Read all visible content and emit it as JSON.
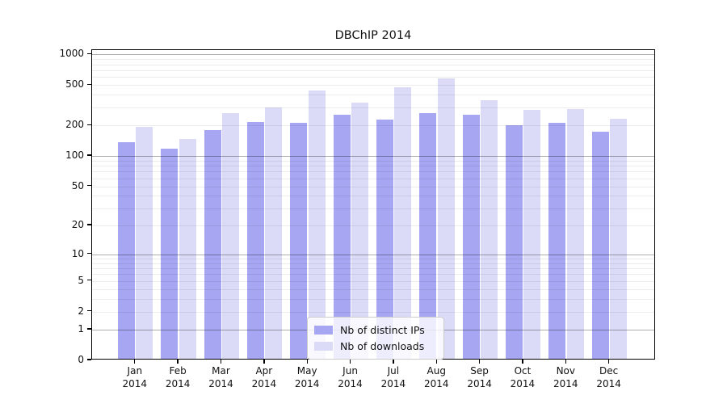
{
  "title": "DBChIP 2014",
  "chart_data": {
    "type": "bar",
    "title": "DBChIP 2014",
    "year": "2014",
    "months": [
      "Jan",
      "Feb",
      "Mar",
      "Apr",
      "May",
      "Jun",
      "Jul",
      "Aug",
      "Sep",
      "Oct",
      "Nov",
      "Dec"
    ],
    "categories": [
      "Jan 2014",
      "Feb 2014",
      "Mar 2014",
      "Apr 2014",
      "May 2014",
      "Jun 2014",
      "Jul 2014",
      "Aug 2014",
      "Sep 2014",
      "Oct 2014",
      "Nov 2014",
      "Dec 2014"
    ],
    "series": [
      {
        "name": "Nb of distinct IPs",
        "color": "#a6a6f2",
        "values": [
          140,
          121,
          182,
          221,
          216,
          258,
          234,
          272,
          261,
          206,
          217,
          177
        ]
      },
      {
        "name": "Nb of downloads",
        "color": "#dbdbf8",
        "values": [
          196,
          149,
          272,
          306,
          450,
          345,
          482,
          589,
          362,
          293,
          297,
          238
        ]
      }
    ],
    "y_axis": {
      "scale": "log10(value+1)",
      "tick_values": [
        1000,
        500,
        200,
        100,
        50,
        20,
        10,
        5,
        2,
        1,
        0
      ],
      "tick_labels": [
        "1000",
        "500",
        "200",
        "100",
        "50",
        "20",
        "10",
        "5",
        "2",
        "1",
        "0"
      ],
      "major_grid_values": [
        1,
        10,
        100,
        1000
      ],
      "ylim": [
        0,
        1100
      ]
    },
    "grid": {
      "horizontal": true,
      "vertical": false
    },
    "legend_position": "lower center",
    "colors": {
      "spine": "#000000",
      "major_grid": "#aaaaaa",
      "minor_grid": "#e8e8e8"
    }
  }
}
